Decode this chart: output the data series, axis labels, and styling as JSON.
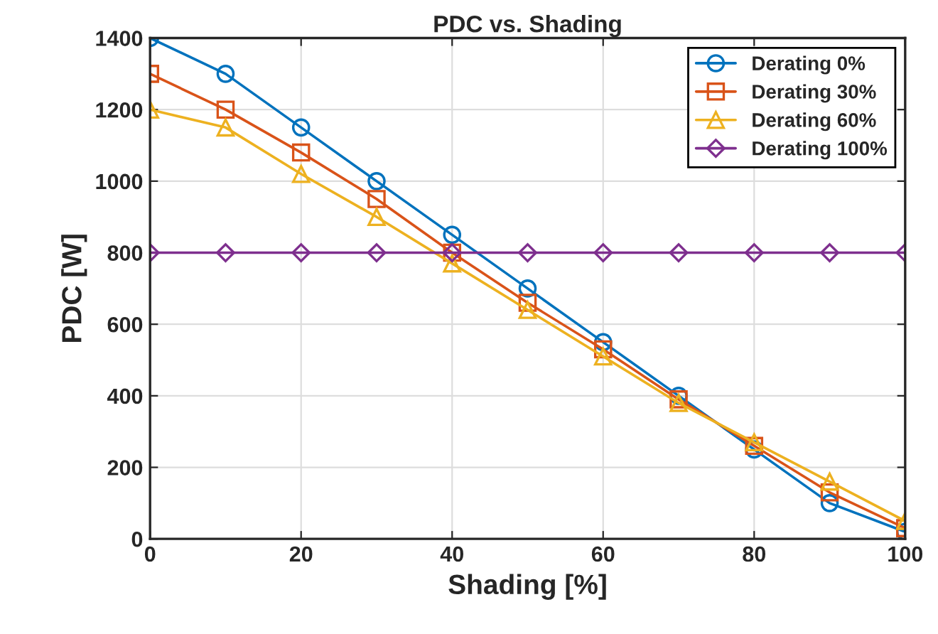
{
  "chart_data": {
    "type": "line",
    "title": "PDC vs. Shading",
    "xlabel": "Shading [%]",
    "ylabel": "PDC [W]",
    "x": [
      0,
      10,
      20,
      30,
      40,
      50,
      60,
      70,
      80,
      90,
      100
    ],
    "series": [
      {
        "name": "Derating 0%",
        "color": "#0072bd",
        "marker": "circle",
        "values": [
          1400,
          1300,
          1150,
          1000,
          850,
          700,
          550,
          400,
          250,
          100,
          20
        ]
      },
      {
        "name": "Derating 30%",
        "color": "#d95319",
        "marker": "square",
        "values": [
          1300,
          1200,
          1080,
          950,
          800,
          660,
          530,
          390,
          260,
          130,
          30
        ]
      },
      {
        "name": "Derating 60%",
        "color": "#edb120",
        "marker": "triangle",
        "values": [
          1200,
          1150,
          1020,
          900,
          770,
          640,
          510,
          380,
          270,
          160,
          50
        ]
      },
      {
        "name": "Derating 100%",
        "color": "#7e2f8e",
        "marker": "diamond",
        "values": [
          800,
          800,
          800,
          800,
          800,
          800,
          800,
          800,
          800,
          800,
          800
        ]
      }
    ],
    "xlim": [
      0,
      100
    ],
    "xticks": [
      0,
      20,
      40,
      60,
      80,
      100
    ],
    "ylim": [
      0,
      1400
    ],
    "yticks": [
      0,
      200,
      400,
      600,
      800,
      1000,
      1200,
      1400
    ],
    "grid": true,
    "legend": "top right",
    "line_style": "solid"
  }
}
